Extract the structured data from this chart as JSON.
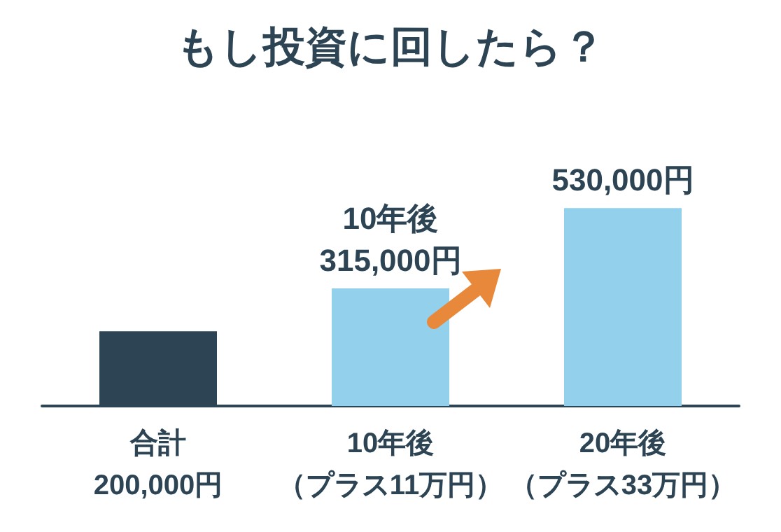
{
  "chart_data": {
    "type": "bar",
    "title": "もし投資に回したら？",
    "categories": [
      "合計\n200,000円",
      "10年後",
      "20年後"
    ],
    "values": [
      200000,
      315000,
      530000
    ],
    "colors": [
      "#2d4454",
      "#92d0ec",
      "#92d0ec"
    ],
    "value_labels": [
      null,
      "10年後\n315,000円",
      "530,000円"
    ],
    "annotations": [
      "（プラス11万円）",
      "（プラス33万円）"
    ]
  }
}
